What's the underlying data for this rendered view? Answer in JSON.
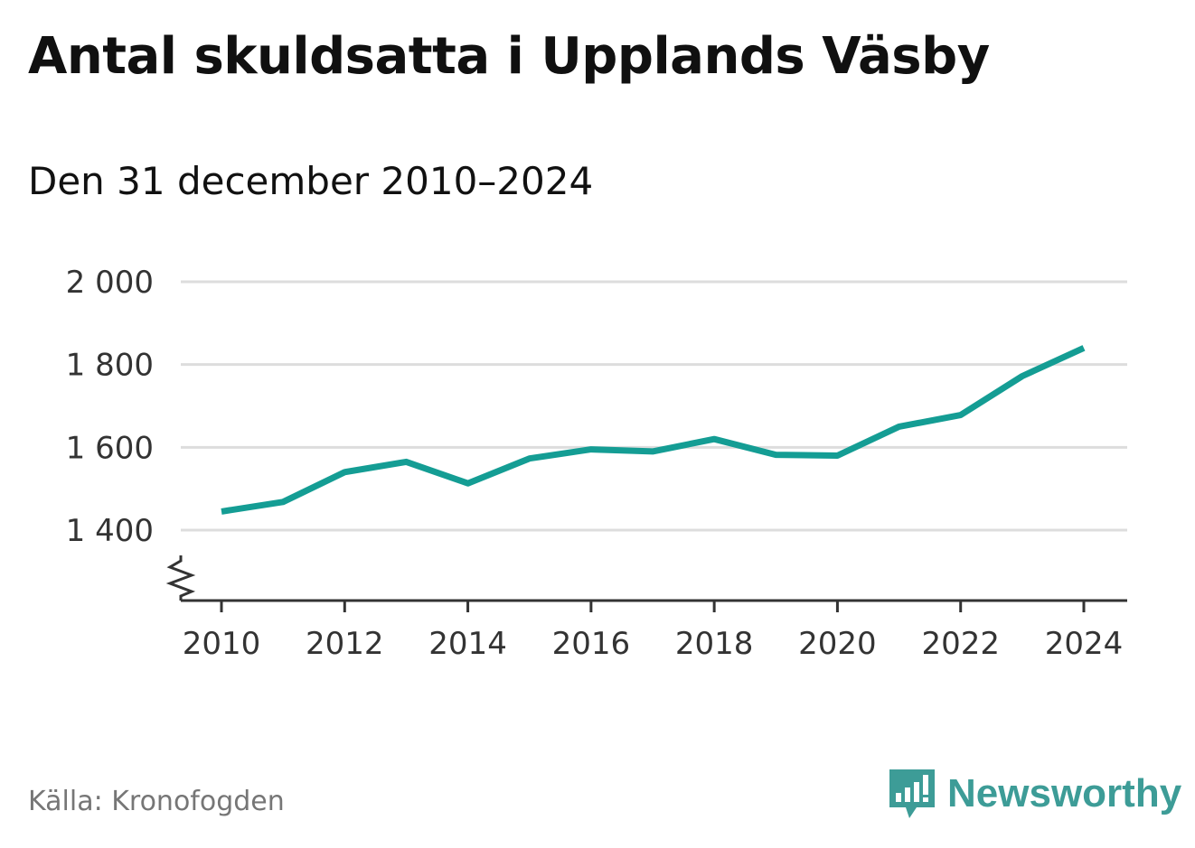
{
  "header": {
    "title": "Antal skuldsatta i Upplands Väsby",
    "subtitle": "Den 31 december 2010–2024"
  },
  "footer": {
    "source": "Källa: Kronofogden",
    "brand": "Newsworthy"
  },
  "colors": {
    "line": "#149d94",
    "grid": "#dddddd",
    "axis": "#333333",
    "brand": "#3d9c97"
  },
  "icons": {
    "brand_logo": "bar-chart-speech-bubble-icon",
    "axis_break": "zigzag-axis-break-icon"
  },
  "chart_data": {
    "type": "line",
    "title": "Antal skuldsatta i Upplands Väsby",
    "subtitle": "Den 31 december 2010–2024",
    "xlabel": "",
    "ylabel": "",
    "x": [
      2010,
      2011,
      2012,
      2013,
      2014,
      2015,
      2016,
      2017,
      2018,
      2019,
      2020,
      2021,
      2022,
      2023,
      2024
    ],
    "series": [
      {
        "name": "Antal skuldsatta",
        "values": [
          1445,
          1468,
          1540,
          1565,
          1513,
          1573,
          1595,
          1590,
          1620,
          1582,
          1580,
          1650,
          1678,
          1772,
          1840
        ]
      }
    ],
    "xlim": [
      2009.6,
      2025.4
    ],
    "ylim": [
      1400,
      2000
    ],
    "y_ticks": [
      {
        "value": 1400,
        "label": "1 400"
      },
      {
        "value": 1600,
        "label": "1 600"
      },
      {
        "value": 1800,
        "label": "1 800"
      },
      {
        "value": 2000,
        "label": "2 000"
      }
    ],
    "x_ticks": [
      {
        "value": 2010,
        "label": "2010"
      },
      {
        "value": 2012,
        "label": "2012"
      },
      {
        "value": 2014,
        "label": "2014"
      },
      {
        "value": 2016,
        "label": "2016"
      },
      {
        "value": 2018,
        "label": "2018"
      },
      {
        "value": 2020,
        "label": "2020"
      },
      {
        "value": 2022,
        "label": "2022"
      },
      {
        "value": 2024,
        "label": "2024"
      }
    ],
    "grid": true,
    "y_axis_break": true,
    "legend": "none"
  }
}
